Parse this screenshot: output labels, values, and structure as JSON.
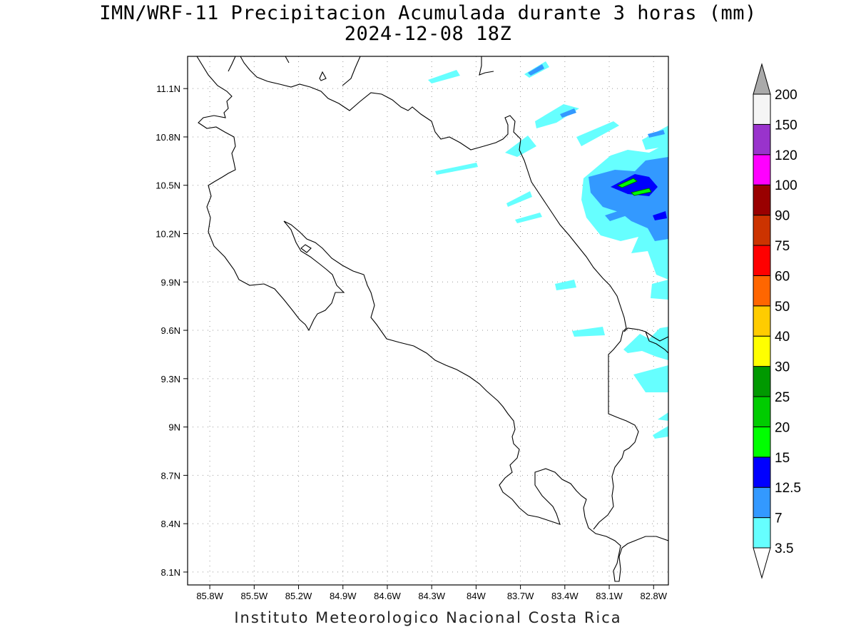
{
  "title": "IMN/WRF-11 Precipitacion Acumulada durante 3 horas (mm)",
  "subtitle": "2024-12-08 18Z",
  "footer": "Instituto Meteorologico Nacional Costa Rica",
  "map": {
    "lon_range": [
      -85.95,
      -82.7
    ],
    "lat_range": [
      8.02,
      11.3
    ],
    "grid": true
  },
  "x_ticks": [
    "85.8W",
    "85.5W",
    "85.2W",
    "84.9W",
    "84.6W",
    "84.3W",
    "84W",
    "83.7W",
    "83.4W",
    "83.1W",
    "82.8W"
  ],
  "x_tick_values": [
    -85.8,
    -85.5,
    -85.2,
    -84.9,
    -84.6,
    -84.3,
    -84.0,
    -83.7,
    -83.4,
    -83.1,
    -82.8
  ],
  "y_ticks": [
    "11.1N",
    "10.8N",
    "10.5N",
    "10.2N",
    "9.9N",
    "9.6N",
    "9.3N",
    "9N",
    "8.7N",
    "8.4N",
    "8.1N"
  ],
  "y_tick_values": [
    11.1,
    10.8,
    10.5,
    10.2,
    9.9,
    9.6,
    9.3,
    9.0,
    8.7,
    8.4,
    8.1
  ],
  "colorbar": {
    "labels": [
      "3.5",
      "7",
      "12.5",
      "15",
      "20",
      "25",
      "30",
      "40",
      "50",
      "60",
      "75",
      "90",
      "100",
      "120",
      "150",
      "200"
    ],
    "colors": [
      "#ffffff",
      "#66ffff",
      "#3399ff",
      "#0000ff",
      "#00ff00",
      "#00cc00",
      "#009900",
      "#ffff00",
      "#ffcc00",
      "#ff6600",
      "#ff0000",
      "#cc3300",
      "#990000",
      "#ff00ff",
      "#9933cc",
      "#f5f5f5",
      "#aaaaaa"
    ]
  }
}
